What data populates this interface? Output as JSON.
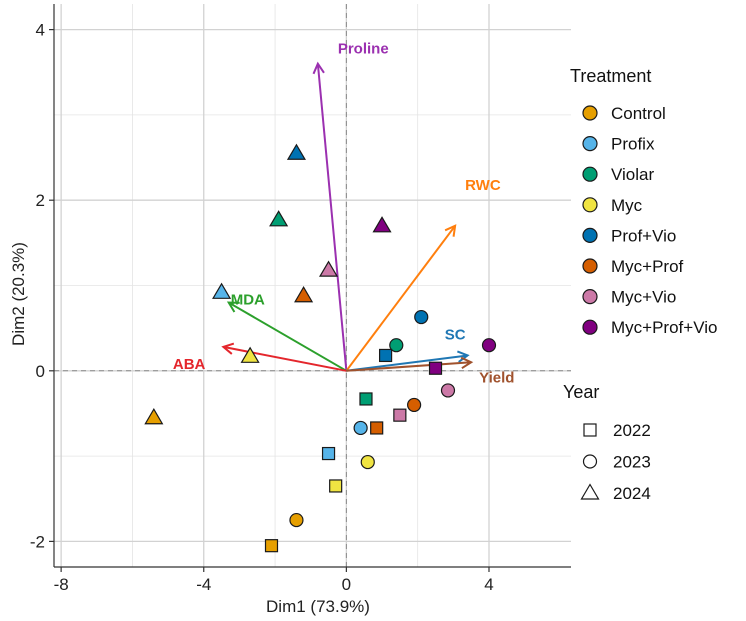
{
  "chart_data": {
    "type": "scatter",
    "xlabel": "Dim1 (73.9%)",
    "ylabel": "Dim2 (20.3%)",
    "xlim": [
      -8.2,
      6.3
    ],
    "ylim": [
      -2.3,
      4.3
    ],
    "xticks": [
      -8,
      -4,
      0,
      4
    ],
    "yticks": [
      -2,
      0,
      2,
      4
    ],
    "xtick_labels": [
      "-8",
      "-4",
      "0",
      "4"
    ],
    "ytick_labels": [
      "-2",
      "0",
      "2",
      "4"
    ],
    "grid": true,
    "legend_placement": "right",
    "treatment_legend": {
      "title": "Treatment",
      "items": [
        {
          "name": "Control",
          "color": "#E69F00"
        },
        {
          "name": "Profix",
          "color": "#56B4E9"
        },
        {
          "name": "Violar",
          "color": "#009E73"
        },
        {
          "name": "Myc",
          "color": "#F0E442"
        },
        {
          "name": "Prof+Vio",
          "color": "#0072B2"
        },
        {
          "name": "Myc+Prof",
          "color": "#D55E00"
        },
        {
          "name": "Myc+Vio",
          "color": "#CC79A7"
        },
        {
          "name": "Myc+Prof+Vio",
          "color": "#800080"
        }
      ]
    },
    "year_legend": {
      "title": "Year",
      "items": [
        {
          "name": "2022",
          "shape": "square"
        },
        {
          "name": "2023",
          "shape": "circle"
        },
        {
          "name": "2024",
          "shape": "triangle"
        }
      ]
    },
    "points": [
      {
        "treatment": "Control",
        "year": "2022",
        "x": -2.1,
        "y": -2.05
      },
      {
        "treatment": "Control",
        "year": "2023",
        "x": -1.4,
        "y": -1.75
      },
      {
        "treatment": "Control",
        "year": "2024",
        "x": -5.4,
        "y": -0.55
      },
      {
        "treatment": "Profix",
        "year": "2022",
        "x": -0.5,
        "y": -0.97
      },
      {
        "treatment": "Profix",
        "year": "2023",
        "x": 0.4,
        "y": -0.67
      },
      {
        "treatment": "Profix",
        "year": "2024",
        "x": -3.5,
        "y": 0.92
      },
      {
        "treatment": "Violar",
        "year": "2022",
        "x": 0.55,
        "y": -0.33
      },
      {
        "treatment": "Violar",
        "year": "2023",
        "x": 1.4,
        "y": 0.3
      },
      {
        "treatment": "Violar",
        "year": "2024",
        "x": -1.9,
        "y": 1.77
      },
      {
        "treatment": "Myc",
        "year": "2022",
        "x": -0.3,
        "y": -1.35
      },
      {
        "treatment": "Myc",
        "year": "2023",
        "x": 0.6,
        "y": -1.07
      },
      {
        "treatment": "Myc",
        "year": "2024",
        "x": -2.7,
        "y": 0.17
      },
      {
        "treatment": "Prof+Vio",
        "year": "2022",
        "x": 1.1,
        "y": 0.18
      },
      {
        "treatment": "Prof+Vio",
        "year": "2023",
        "x": 2.1,
        "y": 0.63
      },
      {
        "treatment": "Prof+Vio",
        "year": "2024",
        "x": -1.4,
        "y": 2.55
      },
      {
        "treatment": "Myc+Prof",
        "year": "2022",
        "x": 0.85,
        "y": -0.67
      },
      {
        "treatment": "Myc+Prof",
        "year": "2023",
        "x": 1.9,
        "y": -0.4
      },
      {
        "treatment": "Myc+Prof",
        "year": "2024",
        "x": -1.2,
        "y": 0.88
      },
      {
        "treatment": "Myc+Vio",
        "year": "2022",
        "x": 1.5,
        "y": -0.52
      },
      {
        "treatment": "Myc+Vio",
        "year": "2023",
        "x": 2.85,
        "y": -0.23
      },
      {
        "treatment": "Myc+Vio",
        "year": "2024",
        "x": -0.5,
        "y": 1.18
      },
      {
        "treatment": "Myc+Prof+Vio",
        "year": "2022",
        "x": 2.5,
        "y": 0.03
      },
      {
        "treatment": "Myc+Prof+Vio",
        "year": "2023",
        "x": 4.0,
        "y": 0.3
      },
      {
        "treatment": "Myc+Prof+Vio",
        "year": "2024",
        "x": 1.0,
        "y": 1.7
      }
    ],
    "vectors": [
      {
        "name": "Proline",
        "x": -0.8,
        "y": 3.6,
        "color": "#9B30B0"
      },
      {
        "name": "RWC",
        "x": 3.05,
        "y": 1.7,
        "color": "#FF7F0E"
      },
      {
        "name": "MDA",
        "x": -3.3,
        "y": 0.8,
        "color": "#2CA02C"
      },
      {
        "name": "ABA",
        "x": -3.45,
        "y": 0.28,
        "color": "#E4262C"
      },
      {
        "name": "SC",
        "x": 3.4,
        "y": 0.18,
        "color": "#1F77B4"
      },
      {
        "name": "Yield",
        "x": 3.5,
        "y": 0.1,
        "color": "#A0522D"
      }
    ]
  }
}
